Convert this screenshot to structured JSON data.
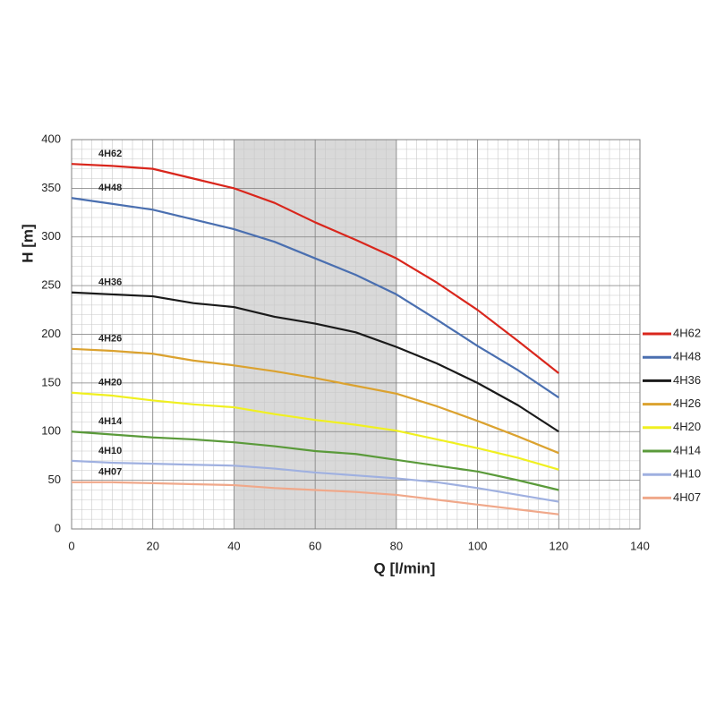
{
  "chart_data": {
    "type": "line",
    "x_label": "Q [l/min]",
    "y_label": "H [m]",
    "x": [
      0,
      10,
      20,
      30,
      40,
      50,
      60,
      70,
      80,
      90,
      100,
      110,
      120
    ],
    "series": [
      {
        "name": "4H62",
        "color": "#d9261c",
        "values": [
          375,
          373,
          370,
          360,
          350,
          335,
          315,
          297,
          278,
          253,
          225,
          193,
          160
        ]
      },
      {
        "name": "4H48",
        "color": "#4a6fb0",
        "values": [
          340,
          334,
          328,
          318,
          308,
          295,
          278,
          261,
          241,
          215,
          188,
          163,
          135
        ]
      },
      {
        "name": "4H36",
        "color": "#1a1a1a",
        "values": [
          243,
          241,
          239,
          232,
          228,
          218,
          211,
          202,
          187,
          170,
          150,
          127,
          100
        ]
      },
      {
        "name": "4H26",
        "color": "#dba22f",
        "values": [
          185,
          183,
          180,
          173,
          168,
          162,
          155,
          147,
          139,
          126,
          111,
          95,
          78
        ]
      },
      {
        "name": "4H20",
        "color": "#f0f020",
        "values": [
          140,
          137,
          132,
          128,
          125,
          118,
          112,
          107,
          101,
          92,
          83,
          73,
          61
        ]
      },
      {
        "name": "4H14",
        "color": "#5a9a3a",
        "values": [
          100,
          97,
          94,
          92,
          89,
          85,
          80,
          77,
          71,
          65,
          59,
          50,
          40
        ]
      },
      {
        "name": "4H10",
        "color": "#9fb0e0",
        "values": [
          70,
          68,
          67,
          66,
          65,
          62,
          58,
          55,
          52,
          48,
          42,
          35,
          28
        ]
      },
      {
        "name": "4H07",
        "color": "#f0a88a",
        "values": [
          48,
          48,
          47,
          46,
          45,
          42,
          40,
          38,
          35,
          30,
          25,
          20,
          15
        ]
      }
    ],
    "xlim": [
      0,
      140
    ],
    "xticks": [
      0,
      20,
      40,
      60,
      80,
      100,
      120,
      140
    ],
    "ylim": [
      0,
      400
    ],
    "yticks": [
      0,
      50,
      100,
      150,
      200,
      250,
      300,
      350,
      400
    ],
    "grid": true,
    "minor_grid": {
      "x": 2.5,
      "y": 10
    },
    "shaded_region": [
      40,
      80
    ],
    "legend": "right"
  }
}
